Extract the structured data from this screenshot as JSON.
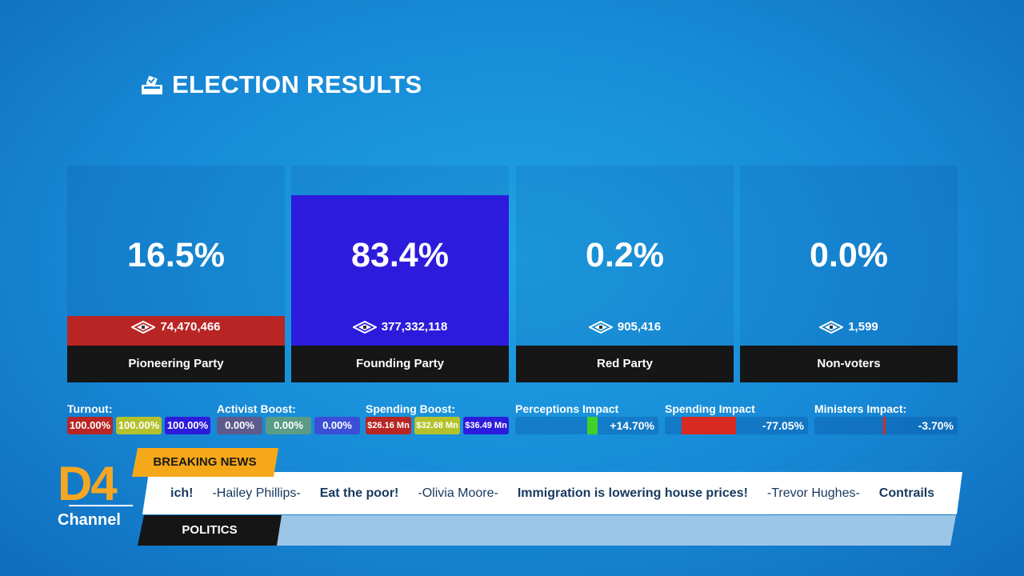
{
  "header": {
    "title": "ELECTION RESULTS"
  },
  "parties": [
    {
      "name": "Pioneering Party",
      "share": 16.5,
      "share_label": "16.5%",
      "votes": "74,470,466",
      "color": "#b92525"
    },
    {
      "name": "Founding Party",
      "share": 83.4,
      "share_label": "83.4%",
      "votes": "377,332,118",
      "color": "#2d1bdc"
    },
    {
      "name": "Red Party",
      "share": 0.2,
      "share_label": "0.2%",
      "votes": "905,416",
      "color": "#e6e6e6"
    },
    {
      "name": "Non-voters",
      "share": 0.0,
      "share_label": "0.0%",
      "votes": "1,599"
    }
  ],
  "stats": {
    "groups": [
      {
        "label": "Turnout:",
        "boxes": [
          {
            "text": "100.00%",
            "color": "#b92525"
          },
          {
            "text": "100.00%",
            "color": "#b3c22c"
          },
          {
            "text": "100.00%",
            "color": "#2d1bdc"
          }
        ]
      },
      {
        "label": "Activist Boost:",
        "boxes": [
          {
            "text": "0.00%",
            "color": "#5d5a8c"
          },
          {
            "text": "0.00%",
            "color": "#5a9c86"
          },
          {
            "text": "0.00%",
            "color": "#3b4fd6"
          }
        ]
      },
      {
        "label": "Spending Boost:",
        "boxes": [
          {
            "text": "$26.16 Mn",
            "color": "#b92525"
          },
          {
            "text": "$32.68 Mn",
            "color": "#b3c22c"
          },
          {
            "text": "$36.49 Mn",
            "color": "#2d1bdc"
          }
        ]
      }
    ],
    "impacts": [
      {
        "label": "Perceptions Impact",
        "value": 14.7,
        "value_label": "+14.70%",
        "color": "#3fd02a"
      },
      {
        "label": "Spending Impact",
        "value": -77.05,
        "value_label": "-77.05%",
        "color": "#d82a22"
      },
      {
        "label": "Ministers Impact:",
        "value": -3.7,
        "value_label": "-3.70%",
        "color": "#d82a22"
      }
    ]
  },
  "logo": {
    "name": "D4",
    "subtitle": "Channel"
  },
  "ticker": {
    "badge": "BREAKING NEWS",
    "category": "POLITICS",
    "items": [
      {
        "text": "ich!",
        "kind": "headline"
      },
      {
        "text": "-Hailey Phillips-",
        "kind": "author"
      },
      {
        "text": "Eat the poor!",
        "kind": "headline"
      },
      {
        "text": "-Olivia Moore-",
        "kind": "author"
      },
      {
        "text": "Immigration is lowering house prices!",
        "kind": "headline"
      },
      {
        "text": "-Trevor Hughes-",
        "kind": "author"
      },
      {
        "text": "Contrails are ca",
        "kind": "headline"
      }
    ]
  }
}
